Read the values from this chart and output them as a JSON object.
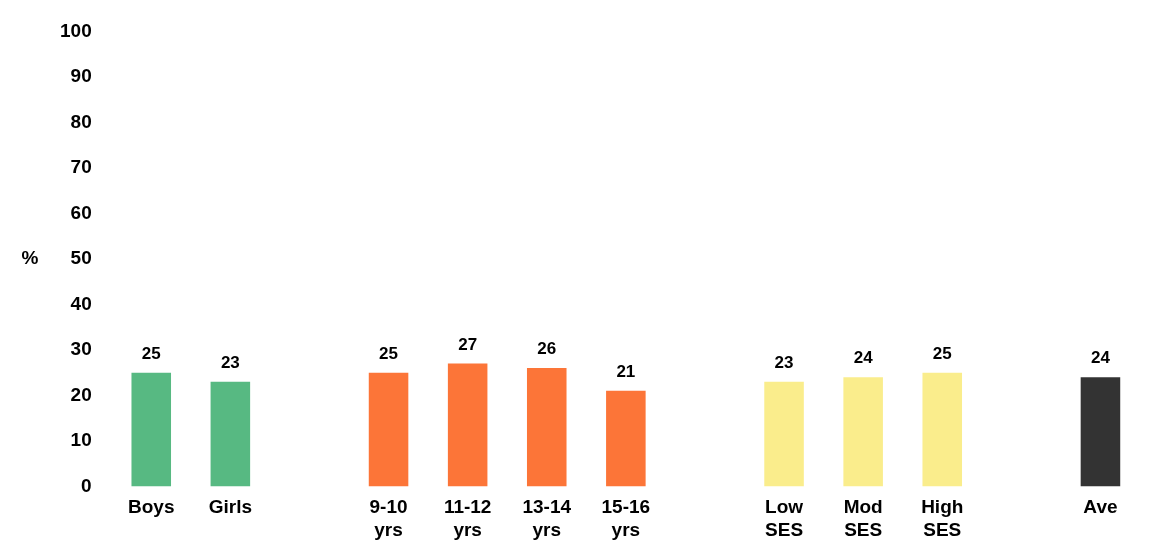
{
  "chart_data": {
    "type": "bar",
    "ylabel": "%",
    "categories": [
      "Boys",
      "Girls",
      null,
      "9-10 yrs",
      "11-12 yrs",
      "13-14 yrs",
      "15-16 yrs",
      null,
      "Low SES",
      "Mod SES",
      "High SES",
      null,
      "Ave"
    ],
    "values": [
      25,
      23,
      null,
      25,
      27,
      26,
      21,
      null,
      23,
      24,
      25,
      null,
      24
    ],
    "colors": [
      "#57b982",
      "#57b982",
      null,
      "#fc7538",
      "#fc7538",
      "#fc7538",
      "#fc7538",
      null,
      "#faed8c",
      "#faed8c",
      "#faed8c",
      null,
      "#333333"
    ],
    "ylim": [
      0,
      100
    ],
    "yticks": [
      0,
      10,
      20,
      30,
      40,
      50,
      60,
      70,
      80,
      90,
      100
    ],
    "grid": false,
    "legend": false,
    "data_labels": true
  }
}
